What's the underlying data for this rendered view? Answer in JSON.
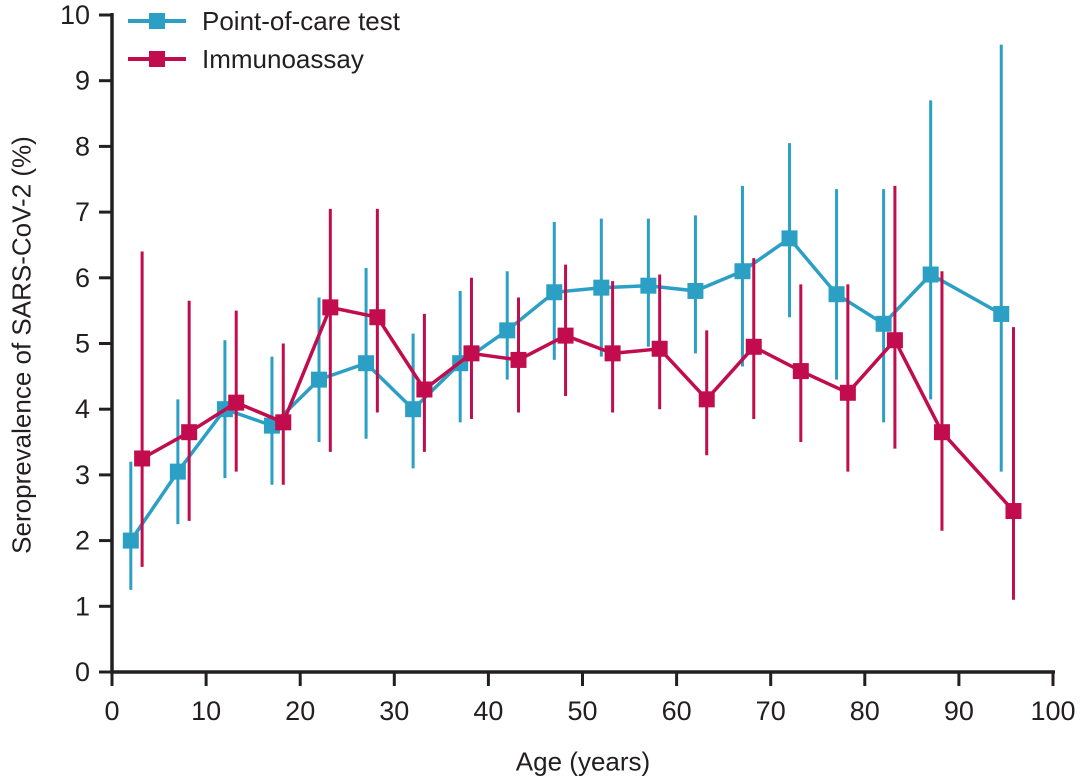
{
  "figure": {
    "y_axis_title": "Seroprevalence of SARS-CoV-2 (%)",
    "x_axis_title": "Age (years)"
  },
  "colors": {
    "axis": "#231f20",
    "background": "#ffffff",
    "poc_teal": "#2ba0c4",
    "immunoassay_crimson": "#c10d4d"
  },
  "chart_data": {
    "type": "line",
    "title": "",
    "xlabel": "Age (years)",
    "ylabel": "Seroprevalence of SARS-CoV-2 (%)",
    "xlim": [
      0,
      100
    ],
    "ylim": [
      0,
      10
    ],
    "x_ticks": [
      0,
      10,
      20,
      30,
      40,
      50,
      60,
      70,
      80,
      90,
      100
    ],
    "y_ticks": [
      0,
      1,
      2,
      3,
      4,
      5,
      6,
      7,
      8,
      9,
      10
    ],
    "grid": false,
    "legend_position": "top-left",
    "error_bars": true,
    "series": [
      {
        "name": "Point-of-care test",
        "color": "#2ba0c4",
        "x": [
          2,
          7,
          12,
          17,
          22,
          27,
          32,
          37,
          42,
          47,
          52,
          57,
          62,
          67,
          72,
          77,
          82,
          87,
          94.5
        ],
        "y": [
          2.0,
          3.05,
          4.0,
          3.75,
          4.45,
          4.7,
          4.0,
          4.7,
          5.2,
          5.78,
          5.85,
          5.88,
          5.8,
          6.1,
          6.6,
          5.75,
          5.3,
          6.05,
          5.45
        ],
        "ci_low": [
          1.25,
          2.25,
          2.95,
          2.85,
          3.5,
          3.55,
          3.1,
          3.8,
          4.45,
          4.75,
          4.8,
          4.95,
          4.85,
          4.65,
          5.4,
          4.45,
          3.8,
          4.15,
          3.05
        ],
        "ci_high": [
          3.2,
          4.15,
          5.05,
          4.8,
          5.7,
          6.15,
          5.15,
          5.8,
          6.1,
          6.85,
          6.9,
          6.9,
          6.95,
          7.4,
          8.05,
          7.35,
          7.35,
          8.7,
          9.55
        ]
      },
      {
        "name": "Immunoassay",
        "color": "#c10d4d",
        "x": [
          3.2,
          8.2,
          13.2,
          18.2,
          23.2,
          28.2,
          33.2,
          38.2,
          43.2,
          48.2,
          53.2,
          58.2,
          63.2,
          68.2,
          73.2,
          78.2,
          83.2,
          88.2,
          95.8
        ],
        "y": [
          3.25,
          3.65,
          4.1,
          3.8,
          5.55,
          5.4,
          4.3,
          4.85,
          4.75,
          5.12,
          4.85,
          4.92,
          4.15,
          4.95,
          4.58,
          4.25,
          5.05,
          3.65,
          2.45
        ],
        "ci_low": [
          1.6,
          2.3,
          3.05,
          2.85,
          3.35,
          3.95,
          3.35,
          3.85,
          3.95,
          4.2,
          3.95,
          4.0,
          3.3,
          3.85,
          3.5,
          3.05,
          3.4,
          2.15,
          1.1
        ],
        "ci_high": [
          6.4,
          5.65,
          5.5,
          5.0,
          7.05,
          7.05,
          5.45,
          6.0,
          5.7,
          6.2,
          5.95,
          6.05,
          5.2,
          6.3,
          5.9,
          5.9,
          7.4,
          6.1,
          5.25
        ]
      }
    ]
  }
}
